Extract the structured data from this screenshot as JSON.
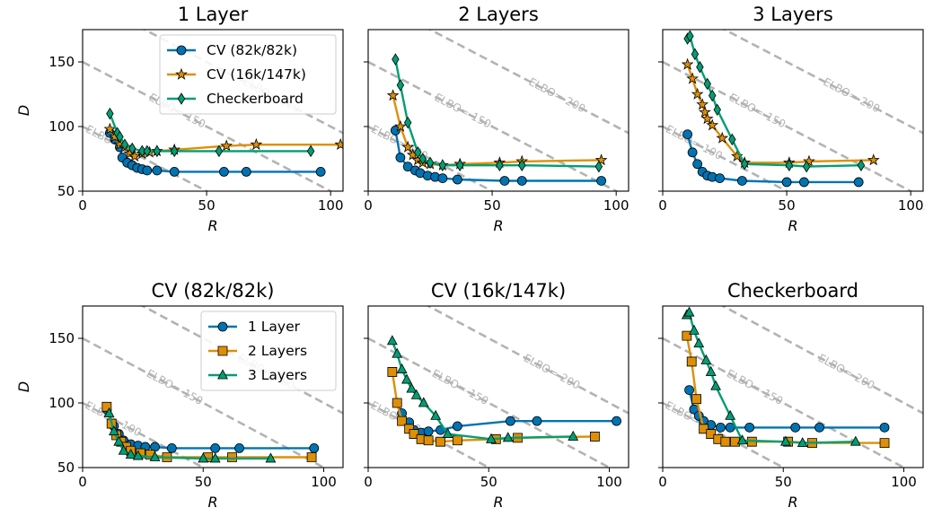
{
  "figure": {
    "width": 1039,
    "height": 585
  },
  "colors": {
    "blue": "#0173b2",
    "orange": "#de8f05",
    "green": "#029e73",
    "reference": "#b3b3b3"
  },
  "chart_data": [
    {
      "type": "line",
      "title": "1 Layer",
      "xlabel": "R",
      "ylabel": "D",
      "xlim": [
        0,
        105
      ],
      "ylim": [
        50,
        175
      ],
      "xticks": [
        "0",
        "50",
        "100"
      ],
      "yticks": [
        "50",
        "100",
        "150"
      ],
      "legend": "top-right",
      "series": [
        {
          "name": "CV (82k/82k)",
          "color": "#0173b2",
          "marker": "circle",
          "x": [
            11,
            13,
            15,
            16,
            18,
            20,
            22,
            24,
            26,
            30,
            37,
            57,
            66,
            96
          ],
          "y": [
            95,
            90,
            84,
            76,
            72,
            70,
            68,
            67,
            66,
            66,
            65,
            65,
            65,
            65
          ]
        },
        {
          "name": "CV (16k/147k)",
          "color": "#de8f05",
          "marker": "star",
          "x": [
            11,
            13,
            15,
            17,
            19,
            21,
            24,
            27,
            30,
            37,
            58,
            70,
            104
          ],
          "y": [
            98,
            92,
            86,
            84,
            79,
            77,
            79,
            80,
            81,
            82,
            85,
            86,
            86
          ]
        },
        {
          "name": "Checkerboard",
          "color": "#029e73",
          "marker": "diamond",
          "x": [
            11,
            14,
            15,
            17,
            20,
            24,
            26,
            30,
            37,
            55,
            92
          ],
          "y": [
            110,
            95,
            92,
            86,
            83,
            81,
            81,
            81,
            81,
            81,
            81
          ]
        }
      ],
      "reference_lines": [
        {
          "label": "ELBO=-100",
          "d_plus_r": 100
        },
        {
          "label": "ELBO=-150",
          "d_plus_r": 150
        },
        {
          "label": "ELBO=-200",
          "d_plus_r": 200
        }
      ]
    },
    {
      "type": "line",
      "title": "2 Layers",
      "xlabel": "R",
      "ylabel": "",
      "xlim": [
        0,
        105
      ],
      "ylim": [
        50,
        175
      ],
      "xticks": [
        "0",
        "50",
        "100"
      ],
      "yticks": [],
      "series": [
        {
          "name": "CV (82k/82k)",
          "color": "#0173b2",
          "marker": "circle",
          "x": [
            11,
            13,
            16,
            19,
            21,
            24,
            27,
            30,
            36,
            55,
            62,
            94
          ],
          "y": [
            97,
            76,
            69,
            66,
            64,
            62,
            61,
            60,
            59,
            58,
            58,
            58
          ]
        },
        {
          "name": "CV (16k/147k)",
          "color": "#de8f05",
          "marker": "star",
          "x": [
            10,
            13,
            16,
            18,
            20,
            22,
            25,
            30,
            37,
            53,
            62,
            94
          ],
          "y": [
            124,
            100,
            84,
            78,
            74,
            72,
            71,
            70,
            71,
            72,
            73,
            74
          ]
        },
        {
          "name": "Checkerboard",
          "color": "#029e73",
          "marker": "diamond",
          "x": [
            11,
            13,
            16,
            20,
            22,
            25,
            30,
            37,
            53,
            62,
            93
          ],
          "y": [
            152,
            132,
            103,
            80,
            75,
            72,
            70,
            70,
            70,
            70,
            69
          ]
        }
      ],
      "reference_lines": [
        {
          "label": "ELBO=-100",
          "d_plus_r": 100
        },
        {
          "label": "ELBO=-150",
          "d_plus_r": 150
        },
        {
          "label": "ELBO=-200",
          "d_plus_r": 200
        }
      ]
    },
    {
      "type": "line",
      "title": "3 Layers",
      "xlabel": "R",
      "ylabel": "",
      "xlim": [
        0,
        105
      ],
      "ylim": [
        50,
        175
      ],
      "xticks": [
        "0",
        "50",
        "100"
      ],
      "yticks": [],
      "series": [
        {
          "name": "CV (82k/82k)",
          "color": "#0173b2",
          "marker": "circle",
          "x": [
            10,
            12,
            14,
            16,
            18,
            20,
            23,
            32,
            50,
            57,
            79
          ],
          "y": [
            94,
            80,
            71,
            65,
            62,
            61,
            60,
            58,
            57,
            57,
            57
          ]
        },
        {
          "name": "CV (16k/147k)",
          "color": "#de8f05",
          "marker": "star",
          "x": [
            10,
            12,
            14,
            16,
            17,
            18,
            20,
            24,
            30,
            33,
            51,
            59,
            85
          ],
          "y": [
            148,
            137,
            125,
            117,
            111,
            106,
            101,
            91,
            77,
            72,
            72,
            73,
            74
          ]
        },
        {
          "name": "Checkerboard",
          "color": "#029e73",
          "marker": "diamond",
          "x": [
            10,
            11,
            13,
            15,
            18,
            20,
            22,
            28,
            33,
            51,
            58,
            80
          ],
          "y": [
            168,
            170,
            156,
            146,
            133,
            124,
            113,
            90,
            71,
            70,
            69,
            70
          ]
        }
      ],
      "reference_lines": [
        {
          "label": "ELBO=-100",
          "d_plus_r": 100
        },
        {
          "label": "ELBO=-150",
          "d_plus_r": 150
        },
        {
          "label": "ELBO=-200",
          "d_plus_r": 200
        }
      ]
    },
    {
      "type": "line",
      "title": "CV (82k/82k)",
      "xlabel": "R",
      "ylabel": "D",
      "xlim": [
        0,
        108
      ],
      "ylim": [
        50,
        175
      ],
      "xticks": [
        "0",
        "50",
        "100"
      ],
      "yticks": [
        "50",
        "100",
        "150"
      ],
      "legend": "top-right",
      "series": [
        {
          "name": "1 Layer",
          "color": "#0173b2",
          "marker": "circle",
          "x": [
            10,
            13,
            15,
            17,
            20,
            23,
            26,
            30,
            37,
            55,
            65,
            96
          ],
          "y": [
            95,
            82,
            76,
            71,
            68,
            67,
            66,
            66,
            65,
            65,
            65,
            65
          ]
        },
        {
          "name": "2 Layers",
          "color": "#de8f05",
          "marker": "square",
          "x": [
            10,
            12,
            14,
            16,
            18,
            20,
            24,
            28,
            35,
            52,
            62,
            95
          ],
          "y": [
            97,
            84,
            75,
            70,
            66,
            63,
            61,
            60,
            58,
            58,
            58,
            58
          ]
        },
        {
          "name": "3 Layers",
          "color": "#029e73",
          "marker": "triangle",
          "x": [
            11,
            13,
            15,
            17,
            20,
            23,
            30,
            50,
            55,
            78
          ],
          "y": [
            92,
            78,
            70,
            63,
            60,
            59,
            58,
            57,
            57,
            57
          ]
        }
      ],
      "reference_lines": [
        {
          "label": "ELBO=-100",
          "d_plus_r": 100
        },
        {
          "label": "ELBO=-150",
          "d_plus_r": 150
        },
        {
          "label": "ELBO=-200",
          "d_plus_r": 200
        }
      ]
    },
    {
      "type": "line",
      "title": "CV (16k/147k)",
      "xlabel": "R",
      "ylabel": "",
      "xlim": [
        0,
        108
      ],
      "ylim": [
        50,
        175
      ],
      "xticks": [
        "0",
        "50",
        "100"
      ],
      "yticks": [],
      "series": [
        {
          "name": "1 Layer",
          "color": "#0173b2",
          "marker": "circle",
          "x": [
            12,
            14,
            17,
            19,
            22,
            25,
            30,
            37,
            59,
            70,
            103
          ],
          "y": [
            100,
            92,
            85,
            79,
            77,
            78,
            79,
            82,
            86,
            86,
            86
          ]
        },
        {
          "name": "2 Layers",
          "color": "#de8f05",
          "marker": "square",
          "x": [
            10,
            12,
            14,
            17,
            19,
            22,
            25,
            30,
            37,
            53,
            62,
            94
          ],
          "y": [
            124,
            100,
            86,
            80,
            76,
            72,
            71,
            70,
            71,
            72,
            73,
            74
          ]
        },
        {
          "name": "3 Layers",
          "color": "#029e73",
          "marker": "triangle",
          "x": [
            10,
            12,
            14,
            16,
            18,
            20,
            23,
            28,
            33,
            51,
            58,
            85
          ],
          "y": [
            148,
            138,
            126,
            118,
            111,
            106,
            100,
            90,
            76,
            72,
            73,
            74
          ]
        }
      ],
      "reference_lines": [
        {
          "label": "ELBO=-100",
          "d_plus_r": 100
        },
        {
          "label": "ELBO=-150",
          "d_plus_r": 150
        },
        {
          "label": "ELBO=-200",
          "d_plus_r": 200
        }
      ]
    },
    {
      "type": "line",
      "title": "Checkerboard",
      "xlabel": "R",
      "ylabel": "",
      "xlim": [
        0,
        108
      ],
      "ylim": [
        50,
        175
      ],
      "xticks": [
        "0",
        "50",
        "100"
      ],
      "yticks": [],
      "series": [
        {
          "name": "1 Layer",
          "color": "#0173b2",
          "marker": "circle",
          "x": [
            11,
            13,
            15,
            17,
            20,
            24,
            28,
            36,
            55,
            65,
            92
          ],
          "y": [
            110,
            95,
            90,
            86,
            83,
            81,
            81,
            81,
            81,
            81,
            81
          ]
        },
        {
          "name": "2 Layers",
          "color": "#de8f05",
          "marker": "square",
          "x": [
            10,
            12,
            14,
            17,
            20,
            23,
            26,
            30,
            37,
            52,
            62,
            92
          ],
          "y": [
            152,
            132,
            103,
            80,
            76,
            72,
            70,
            70,
            70,
            70,
            69,
            69
          ]
        },
        {
          "name": "3 Layers",
          "color": "#029e73",
          "marker": "triangle",
          "x": [
            10,
            11,
            13,
            15,
            18,
            20,
            22,
            28,
            33,
            51,
            58,
            80
          ],
          "y": [
            168,
            170,
            156,
            146,
            133,
            124,
            113,
            90,
            71,
            70,
            69,
            70
          ]
        }
      ],
      "reference_lines": [
        {
          "label": "ELBO=-100",
          "d_plus_r": 100
        },
        {
          "label": "ELBO=-150",
          "d_plus_r": 150
        },
        {
          "label": "ELBO=-200",
          "d_plus_r": 200
        }
      ]
    }
  ]
}
